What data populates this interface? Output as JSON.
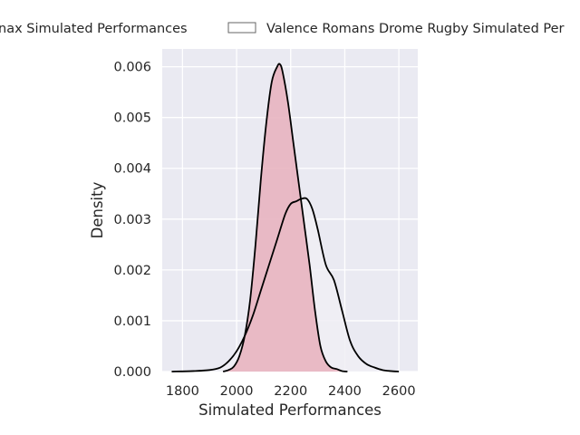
{
  "chart_data": {
    "type": "area",
    "xlabel": "Simulated Performances",
    "ylabel": "Density",
    "xlim": [
      1725,
      2670
    ],
    "ylim": [
      0,
      0.00635
    ],
    "xticks": [
      1800,
      2000,
      2200,
      2400,
      2600
    ],
    "yticks": [
      0.0,
      0.001,
      0.002,
      0.003,
      0.004,
      0.005,
      0.006
    ],
    "xtick_labels": [
      "1800",
      "2000",
      "2200",
      "2400",
      "2600"
    ],
    "ytick_labels": [
      "0.000",
      "0.001",
      "0.002",
      "0.003",
      "0.004",
      "0.005",
      "0.006"
    ],
    "grid": true,
    "legend_position": "top-center, above plot",
    "colors": {
      "plot_background": "#eaeaf2",
      "grid": "#ffffff",
      "series_1_fill": "#e8b4c0",
      "series_2_fill": "#f0eef4",
      "line": "#000000"
    },
    "series": [
      {
        "name": "Agen Lot-et-Garonne Armagnac vs Oyonnax Simulated Performances",
        "display_label": "nax Simulated Performances",
        "x": [
          1950,
          1970,
          1990,
          2010,
          2030,
          2050,
          2070,
          2090,
          2110,
          2130,
          2150,
          2160,
          2170,
          2190,
          2210,
          2230,
          2250,
          2270,
          2290,
          2310,
          2330,
          2350,
          2370,
          2390,
          2410
        ],
        "y": [
          0.0,
          3e-05,
          0.0001,
          0.0003,
          0.0007,
          0.0014,
          0.0025,
          0.0038,
          0.0049,
          0.0057,
          0.006,
          0.00605,
          0.0059,
          0.0053,
          0.0045,
          0.0037,
          0.0029,
          0.0021,
          0.0012,
          0.0005,
          0.0002,
          8e-05,
          5e-05,
          1e-05,
          0.0
        ]
      },
      {
        "name": "Valence Romans Drome Rugby Simulated Performances",
        "display_label": "Valence Romans Drome Rugby Simulated Per",
        "x": [
          1760,
          1840,
          1900,
          1940,
          1970,
          2000,
          2030,
          2060,
          2090,
          2120,
          2150,
          2180,
          2200,
          2220,
          2240,
          2260,
          2280,
          2300,
          2330,
          2360,
          2390,
          2420,
          2450,
          2480,
          2510,
          2540,
          2570,
          2600
        ],
        "y": [
          0.0,
          1e-05,
          3e-05,
          8e-05,
          0.0002,
          0.0004,
          0.0007,
          0.0011,
          0.0016,
          0.0021,
          0.0026,
          0.0031,
          0.0033,
          0.00335,
          0.0034,
          0.0034,
          0.0032,
          0.0028,
          0.0021,
          0.0018,
          0.0012,
          0.0006,
          0.0003,
          0.00015,
          8e-05,
          3e-05,
          1e-05,
          0.0
        ]
      }
    ]
  }
}
